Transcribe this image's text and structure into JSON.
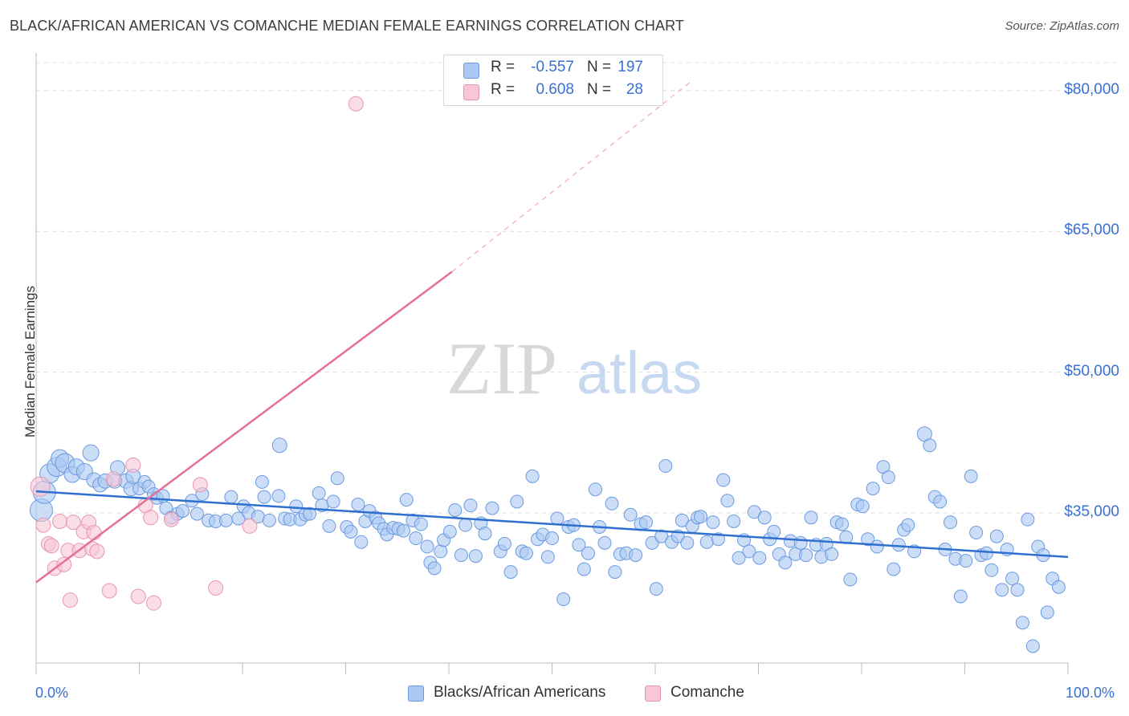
{
  "header": {
    "title": "BLACK/AFRICAN AMERICAN VS COMANCHE MEDIAN FEMALE EARNINGS CORRELATION CHART",
    "source": "Source: ZipAtlas.com"
  },
  "watermark": {
    "zip": "ZIP",
    "atlas": "atlas"
  },
  "legend": {
    "rows": [
      {
        "r_label": "R =",
        "r_value": "-0.557",
        "n_label": "N =",
        "n_value": "197",
        "color": "#aac8f2",
        "border": "#6b9ae0"
      },
      {
        "r_label": "R =",
        "r_value": "0.608",
        "n_label": "N =",
        "n_value": "28",
        "color": "#f8c6d6",
        "border": "#e896b1"
      }
    ]
  },
  "bottom_legend": {
    "items": [
      {
        "label": "Blacks/African Americans",
        "color": "#aac8f2",
        "border": "#6b9ae0"
      },
      {
        "label": "Comanche",
        "color": "#f8c6d6",
        "border": "#e896b1"
      }
    ]
  },
  "axes": {
    "ylabel": "Median Female Earnings",
    "x_min_label": "0.0%",
    "x_max_label": "100.0%",
    "y_ticks": [
      "$80,000",
      "$65,000",
      "$50,000",
      "$35,000"
    ]
  },
  "chart_data": {
    "type": "scatter",
    "title": "BLACK/AFRICAN AMERICAN VS COMANCHE MEDIAN FEMALE EARNINGS CORRELATION CHART",
    "xlabel": "",
    "ylabel": "Median Female Earnings",
    "xlim": [
      0,
      100
    ],
    "ylim": [
      19000,
      83500
    ],
    "y_ticks": [
      35000,
      50000,
      65000,
      80000
    ],
    "grid": true,
    "legend": "top-center",
    "series": [
      {
        "name": "Blacks/African Americans",
        "color": "#6b9ae0",
        "fill": "#aac8f2",
        "r": -0.557,
        "n": 197,
        "trend": {
          "x": [
            0,
            100
          ],
          "y": [
            37300,
            30300
          ],
          "style": "solid"
        },
        "points": [
          [
            0.5,
            35300,
            14
          ],
          [
            0.8,
            37200,
            14
          ],
          [
            1.3,
            39200,
            12
          ],
          [
            2,
            39900,
            12
          ],
          [
            2.3,
            40800,
            11
          ],
          [
            2.8,
            40300,
            12
          ],
          [
            3.5,
            39100,
            10
          ],
          [
            3.9,
            39900,
            10
          ],
          [
            4.7,
            39400,
            10
          ],
          [
            5.3,
            41400,
            10
          ],
          [
            5.6,
            38500,
            9
          ],
          [
            6.2,
            38000,
            9
          ],
          [
            6.7,
            38400,
            9
          ],
          [
            7.6,
            38400,
            9
          ],
          [
            7.9,
            39800,
            9
          ],
          [
            8.7,
            38400,
            9
          ],
          [
            9.2,
            37600,
            9
          ],
          [
            9.4,
            38900,
            9
          ],
          [
            10,
            37600,
            8
          ],
          [
            10.5,
            38300,
            8
          ],
          [
            10.9,
            37800,
            8
          ],
          [
            11.4,
            37000,
            8
          ],
          [
            11.7,
            36600,
            8
          ],
          [
            12.3,
            36800,
            8
          ],
          [
            12.6,
            35500,
            8
          ],
          [
            13.1,
            34500,
            8
          ],
          [
            13.7,
            34900,
            8
          ],
          [
            14.2,
            35200,
            8
          ],
          [
            15.1,
            36300,
            8
          ],
          [
            15.6,
            34900,
            8
          ],
          [
            16.1,
            37000,
            8
          ],
          [
            16.7,
            34200,
            8
          ],
          [
            17.4,
            34100,
            8
          ],
          [
            18.4,
            34200,
            8
          ],
          [
            18.9,
            36700,
            8
          ],
          [
            19.6,
            34400,
            8
          ],
          [
            20.1,
            35700,
            8
          ],
          [
            20.6,
            35000,
            8
          ],
          [
            21.5,
            34600,
            8
          ],
          [
            21.9,
            38300,
            8
          ],
          [
            22.1,
            36700,
            8
          ],
          [
            22.6,
            34200,
            8
          ],
          [
            23.5,
            36800,
            8
          ],
          [
            23.6,
            42200,
            9
          ],
          [
            24.1,
            34400,
            8
          ],
          [
            24.6,
            34300,
            8
          ],
          [
            25.2,
            35700,
            8
          ],
          [
            25.6,
            34300,
            8
          ],
          [
            26.1,
            34800,
            8
          ],
          [
            26.5,
            34900,
            8
          ],
          [
            27.4,
            37100,
            8
          ],
          [
            27.7,
            35800,
            8
          ],
          [
            28.4,
            33600,
            8
          ],
          [
            28.8,
            36200,
            8
          ],
          [
            29.2,
            38700,
            8
          ],
          [
            30.1,
            33500,
            8
          ],
          [
            30.5,
            33000,
            8
          ],
          [
            31.2,
            35900,
            8
          ],
          [
            31.5,
            31900,
            8
          ],
          [
            31.9,
            34100,
            8
          ],
          [
            32.3,
            35200,
            8
          ],
          [
            32.9,
            34500,
            8
          ],
          [
            33.2,
            33900,
            8
          ],
          [
            33.7,
            33300,
            8
          ],
          [
            34,
            32700,
            8
          ],
          [
            34.6,
            33400,
            8
          ],
          [
            35.1,
            33300,
            8
          ],
          [
            35.6,
            33100,
            8
          ],
          [
            35.9,
            36400,
            8
          ],
          [
            36.5,
            34200,
            8
          ],
          [
            36.8,
            32300,
            8
          ],
          [
            37.3,
            33800,
            8
          ],
          [
            37.9,
            31400,
            8
          ],
          [
            38.2,
            29700,
            8
          ],
          [
            38.6,
            29100,
            8
          ],
          [
            39.2,
            30900,
            8
          ],
          [
            39.5,
            32100,
            8
          ],
          [
            40.1,
            33000,
            8
          ],
          [
            40.6,
            35300,
            8
          ],
          [
            41.2,
            30500,
            8
          ],
          [
            41.6,
            33700,
            8
          ],
          [
            42.1,
            35800,
            8
          ],
          [
            42.6,
            30400,
            8
          ],
          [
            43.1,
            33900,
            8
          ],
          [
            43.5,
            32800,
            8
          ],
          [
            44.2,
            35500,
            8
          ],
          [
            45,
            30900,
            8
          ],
          [
            45.4,
            31700,
            8
          ],
          [
            46,
            28700,
            8
          ],
          [
            46.6,
            36200,
            8
          ],
          [
            47.1,
            30900,
            8
          ],
          [
            47.5,
            30700,
            8
          ],
          [
            48.1,
            38900,
            8
          ],
          [
            48.6,
            32200,
            8
          ],
          [
            49.1,
            32700,
            8
          ],
          [
            49.6,
            30300,
            8
          ],
          [
            50,
            32300,
            8
          ],
          [
            50.5,
            34400,
            8
          ],
          [
            51.1,
            25800,
            8
          ],
          [
            51.6,
            33500,
            8
          ],
          [
            52.1,
            33700,
            8
          ],
          [
            52.6,
            31600,
            8
          ],
          [
            53.1,
            29000,
            8
          ],
          [
            53.5,
            30700,
            8
          ],
          [
            54.2,
            37500,
            8
          ],
          [
            54.6,
            33500,
            8
          ],
          [
            55.1,
            31800,
            8
          ],
          [
            55.8,
            36000,
            8
          ],
          [
            56.1,
            28700,
            8
          ],
          [
            56.6,
            30600,
            8
          ],
          [
            57.2,
            30700,
            8
          ],
          [
            57.6,
            34800,
            8
          ],
          [
            58.1,
            30500,
            8
          ],
          [
            58.6,
            33800,
            8
          ],
          [
            59.1,
            34000,
            8
          ],
          [
            59.7,
            31800,
            8
          ],
          [
            60.1,
            26900,
            8
          ],
          [
            60.6,
            32500,
            8
          ],
          [
            61,
            40000,
            8
          ],
          [
            61.6,
            31900,
            8
          ],
          [
            62.2,
            32500,
            8
          ],
          [
            62.6,
            34200,
            8
          ],
          [
            63.1,
            31800,
            8
          ],
          [
            63.6,
            33600,
            8
          ],
          [
            64.1,
            34500,
            8
          ],
          [
            64.4,
            34600,
            8
          ],
          [
            65,
            31900,
            8
          ],
          [
            65.6,
            34000,
            8
          ],
          [
            66.1,
            32200,
            8
          ],
          [
            66.6,
            38500,
            8
          ],
          [
            67,
            36300,
            8
          ],
          [
            67.6,
            34100,
            8
          ],
          [
            68.1,
            30200,
            8
          ],
          [
            68.6,
            32100,
            8
          ],
          [
            69.1,
            30900,
            8
          ],
          [
            69.6,
            35100,
            8
          ],
          [
            70.1,
            30200,
            8
          ],
          [
            70.6,
            34500,
            8
          ],
          [
            71.1,
            32200,
            8
          ],
          [
            71.5,
            33000,
            8
          ],
          [
            72,
            30600,
            8
          ],
          [
            72.6,
            29700,
            8
          ],
          [
            73.1,
            32000,
            8
          ],
          [
            73.6,
            30600,
            8
          ],
          [
            74.1,
            31800,
            8
          ],
          [
            74.6,
            30500,
            8
          ],
          [
            75.1,
            34500,
            8
          ],
          [
            75.6,
            31600,
            8
          ],
          [
            76.1,
            30300,
            8
          ],
          [
            76.6,
            31700,
            8
          ],
          [
            77.1,
            30600,
            8
          ],
          [
            77.6,
            34000,
            8
          ],
          [
            78.1,
            33800,
            8
          ],
          [
            78.5,
            32400,
            8
          ],
          [
            78.9,
            27900,
            8
          ],
          [
            79.6,
            35900,
            8
          ],
          [
            80.1,
            35700,
            8
          ],
          [
            80.6,
            32200,
            8
          ],
          [
            81.1,
            37600,
            8
          ],
          [
            81.5,
            31400,
            8
          ],
          [
            82.1,
            39900,
            8
          ],
          [
            82.6,
            38800,
            8
          ],
          [
            83.1,
            29000,
            8
          ],
          [
            83.6,
            31600,
            8
          ],
          [
            84.1,
            33200,
            8
          ],
          [
            84.5,
            33700,
            8
          ],
          [
            85.1,
            30900,
            8
          ],
          [
            86.1,
            43400,
            9
          ],
          [
            86.6,
            42200,
            8
          ],
          [
            87.1,
            36700,
            8
          ],
          [
            87.6,
            36200,
            8
          ],
          [
            88.1,
            31100,
            8
          ],
          [
            88.6,
            34000,
            8
          ],
          [
            89.1,
            30100,
            8
          ],
          [
            89.6,
            26100,
            8
          ],
          [
            90.1,
            29900,
            8
          ],
          [
            90.6,
            38900,
            8
          ],
          [
            91.1,
            32900,
            8
          ],
          [
            91.6,
            30500,
            8
          ],
          [
            92.1,
            30700,
            8
          ],
          [
            92.6,
            28900,
            8
          ],
          [
            93.1,
            32500,
            8
          ],
          [
            93.6,
            26800,
            8
          ],
          [
            94.1,
            31100,
            8
          ],
          [
            94.6,
            28000,
            8
          ],
          [
            95.1,
            26800,
            8
          ],
          [
            95.6,
            23300,
            8
          ],
          [
            96.1,
            34300,
            8
          ],
          [
            96.6,
            20800,
            8
          ],
          [
            97.1,
            31400,
            8
          ],
          [
            97.6,
            30500,
            8
          ],
          [
            98,
            24400,
            8
          ],
          [
            98.5,
            28000,
            8
          ],
          [
            99.1,
            27100,
            8
          ]
        ]
      },
      {
        "name": "Comanche",
        "color": "#e896b1",
        "fill": "#f8c6d6",
        "r": 0.608,
        "n": 28,
        "trend": {
          "x": [
            0,
            40.3,
            63.5
          ],
          "y": [
            27600,
            60700,
            81000
          ],
          "style": "solid-then-dashed"
        },
        "points": [
          [
            0.4,
            37800,
            12
          ],
          [
            0.7,
            33700,
            9
          ],
          [
            1.2,
            31700,
            9
          ],
          [
            1.5,
            31500,
            9
          ],
          [
            1.8,
            29100,
            9
          ],
          [
            2.3,
            34100,
            9
          ],
          [
            2.7,
            29500,
            9
          ],
          [
            3.1,
            31000,
            9
          ],
          [
            3.3,
            25700,
            9
          ],
          [
            3.6,
            34000,
            9
          ],
          [
            4.2,
            31000,
            9
          ],
          [
            4.6,
            33000,
            9
          ],
          [
            5.1,
            34000,
            9
          ],
          [
            5.4,
            31200,
            9
          ],
          [
            5.9,
            30900,
            9
          ],
          [
            5.6,
            32900,
            9
          ],
          [
            7.1,
            26700,
            9
          ],
          [
            7.5,
            38600,
            9
          ],
          [
            9.4,
            40100,
            9
          ],
          [
            9.9,
            26100,
            9
          ],
          [
            10.6,
            35800,
            9
          ],
          [
            11.1,
            34500,
            9
          ],
          [
            11.4,
            25400,
            9
          ],
          [
            13.1,
            34300,
            9
          ],
          [
            15.9,
            38000,
            9
          ],
          [
            17.4,
            27000,
            9
          ],
          [
            20.7,
            33600,
            9
          ],
          [
            31,
            78600,
            9
          ]
        ]
      }
    ]
  }
}
